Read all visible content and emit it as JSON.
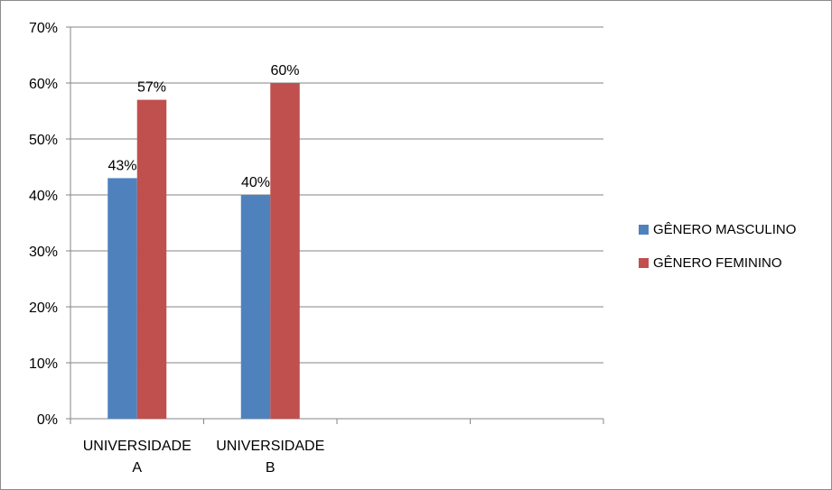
{
  "chart_data": {
    "type": "bar",
    "categories": [
      "UNIVERSIDADE\nA",
      "UNIVERSIDADE\nB",
      "",
      ""
    ],
    "series": [
      {
        "name": "GÊNERO MASCULINO",
        "values": [
          43,
          40,
          null,
          null
        ],
        "labels": [
          "43%",
          "40%",
          "",
          ""
        ],
        "color": "#4f81bd"
      },
      {
        "name": "GÊNERO FEMININO",
        "values": [
          57,
          60,
          null,
          null
        ],
        "labels": [
          "57%",
          "60%",
          "",
          ""
        ],
        "color": "#c0504d"
      }
    ],
    "ylim": [
      0,
      70
    ],
    "yticks": [
      0,
      10,
      20,
      30,
      40,
      50,
      60,
      70
    ],
    "ytick_labels": [
      "0%",
      "10%",
      "20%",
      "30%",
      "40%",
      "50%",
      "60%",
      "70%"
    ],
    "grid": true,
    "legend_position": "right",
    "title": "",
    "xlabel": "",
    "ylabel": ""
  }
}
